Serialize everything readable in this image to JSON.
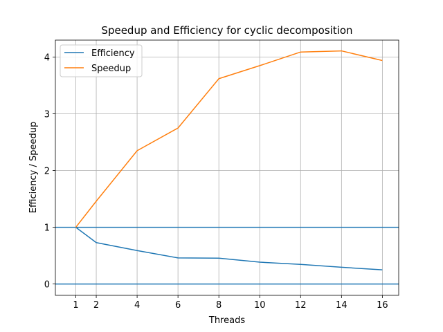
{
  "chart_data": {
    "type": "line",
    "title": "Speedup and Efficiency for cyclic decomposition",
    "xlabel": "Threads",
    "ylabel": "Efficiency / Speedup",
    "xlim": [
      0.0,
      16.8
    ],
    "ylim": [
      -0.2,
      4.3
    ],
    "xticks": [
      1,
      2,
      4,
      6,
      8,
      10,
      12,
      14,
      16
    ],
    "yticks": [
      0,
      1,
      2,
      3,
      4
    ],
    "grid": true,
    "legend_position": "upper-left",
    "x": [
      1,
      2,
      4,
      6,
      8,
      10,
      12,
      14,
      16
    ],
    "series": [
      {
        "name": "Efficiency",
        "color": "#1f77b4",
        "values": [
          1.0,
          0.73,
          0.59,
          0.46,
          0.455,
          0.385,
          0.345,
          0.295,
          0.25
        ]
      },
      {
        "name": "Speedup",
        "color": "#ff7f0e",
        "values": [
          1.0,
          1.46,
          2.35,
          2.75,
          3.62,
          3.85,
          4.09,
          4.11,
          3.94
        ]
      }
    ],
    "hlines": [
      {
        "y": 0,
        "color": "#1f77b4"
      },
      {
        "y": 1,
        "color": "#1f77b4"
      }
    ]
  }
}
